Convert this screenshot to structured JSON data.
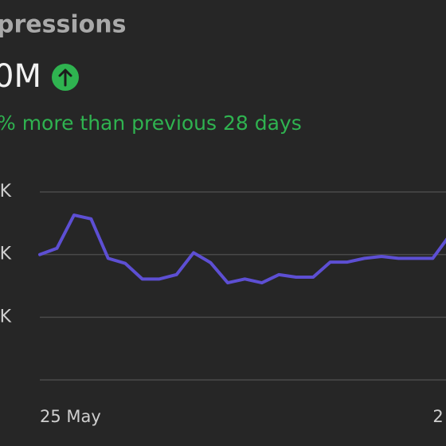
{
  "header": {
    "title": "pressions",
    "total": "0M",
    "change": "% more than previous 28 days"
  },
  "chart_data": {
    "type": "line",
    "categories": [
      "25 May",
      null,
      null,
      null,
      null,
      null,
      null,
      null,
      null,
      null,
      null,
      null,
      null,
      null,
      null,
      null,
      null,
      null,
      null,
      null,
      null,
      null,
      null,
      "2",
      null
    ],
    "series": [
      {
        "color": "#5d4fd3",
        "values": [
          2.0,
          2.1,
          2.63,
          2.57,
          1.94,
          1.86,
          1.61,
          1.61,
          1.68,
          2.03,
          1.87,
          1.55,
          1.61,
          1.55,
          1.68,
          1.64,
          1.64,
          1.88,
          1.88,
          1.94,
          1.97,
          1.94,
          1.94,
          1.94,
          2.31
        ]
      }
    ],
    "ylim": [
      0,
      3
    ],
    "yticks": [
      {
        "value": 1,
        "label": "K"
      },
      {
        "value": 2,
        "label": "K"
      },
      {
        "value": 3,
        "label": "K"
      }
    ],
    "grid": true
  }
}
